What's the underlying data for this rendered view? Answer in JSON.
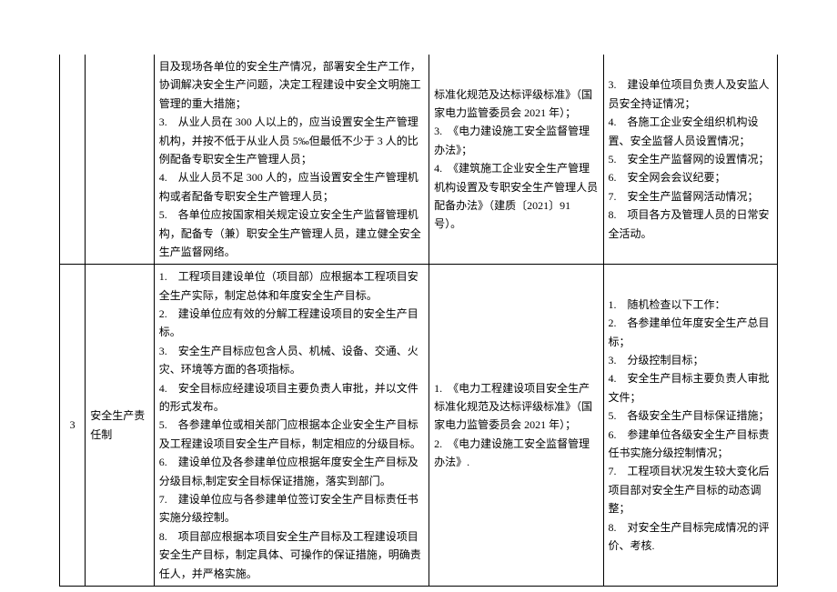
{
  "row2": {
    "content": "目及现场各单位的安全生产情况，部署安全生产工作，协调解决安全生产问题，决定工程建设中安全文明施工管理的重大措施；\n3.　从业人员在 300 人以上的，应当设置安全生产管理机构，并按不低于从业人员 5‰但最低不少于 3 人的比例配备专职安全生产管理人员；\n4.　从业人员不足 300 人的，应当设置安全生产管理机构或者配备专职安全生产管理人员；\n5.　各单位应按国家相关规定设立安全生产监督管理机构，配备专（兼）职安全生产管理人员，建立健全安全生产监督网络。",
    "standard": "标准化规范及达标评级标准》（国家电力监管委员会 2021 年）；\n3.　《电力建设施工安全监督管理办法》；\n4.　《建筑施工企业安全生产管理机构设置及专职安全生产管理人员配备办法》（建质〔2021〕91 号）。",
    "check": "3.　建设单位项目负责人及安监人员安全持证情况；\n4.　各施工企业安全组织机构设置、安全监督人员设置情况；\n5.　安全生产监督网的设置情况；\n6.　安全网会会议纪要；\n7.　安全生产监督网活动情况；\n8.　项目各方及管理人员的日常安全活动。"
  },
  "row3": {
    "idx": "3",
    "name": "安全生产责任制",
    "content": "1.　工程项目建设单位（项目部）应根据本工程项目安全生产实际，制定总体和年度安全生产目标。\n2.　建设单位应有效的分解工程建设项目的安全生产目标。\n3.　安全生产目标应包含人员、机械、设备、交通、火灾、环境等方面的各项指标。\n4.　安全目标应经建设项目主要负责人审批，并以文件的形式发布。\n5.　各参建单位或相关部门应根据本企业安全生产目标及工程建设项目安全生产目标，制定相应的分级目标。\n6.　建设单位及各参建单位应根据年度安全生产目标及分级目标,制定安全目标保证措施，落实到部门。\n7.　建设单位应与各参建单位签订安全生产目标责任书实施分级控制。\n8.　项目部应根据本项目安全生产目标及工程建设项目安全生产目标，制定具体、可操作的保证措施，明确责任人，并严格实施。",
    "standard": "1.　《电力工程建设项目安全生产标准化规范及达标评级标准》（国家电力监管委员会 2021 年）；\n2.　《电力建设施工安全监督管理办法》.",
    "check": "1.　随机检查以下工作：\n2.　各参建单位年度安全生产总目标；\n3.　分级控制目标；\n4.　安全生产目标主要负责人审批文件；\n5.　各级安全生产目标保证措施；\n6.　参建单位各级安全生产目标责任书实施分级控制情况；\n7.　工程项目状况发生较大变化后项目部对安全生产目标的动态调整；\n8.　对安全生产目标完成情况的评价、考核."
  }
}
